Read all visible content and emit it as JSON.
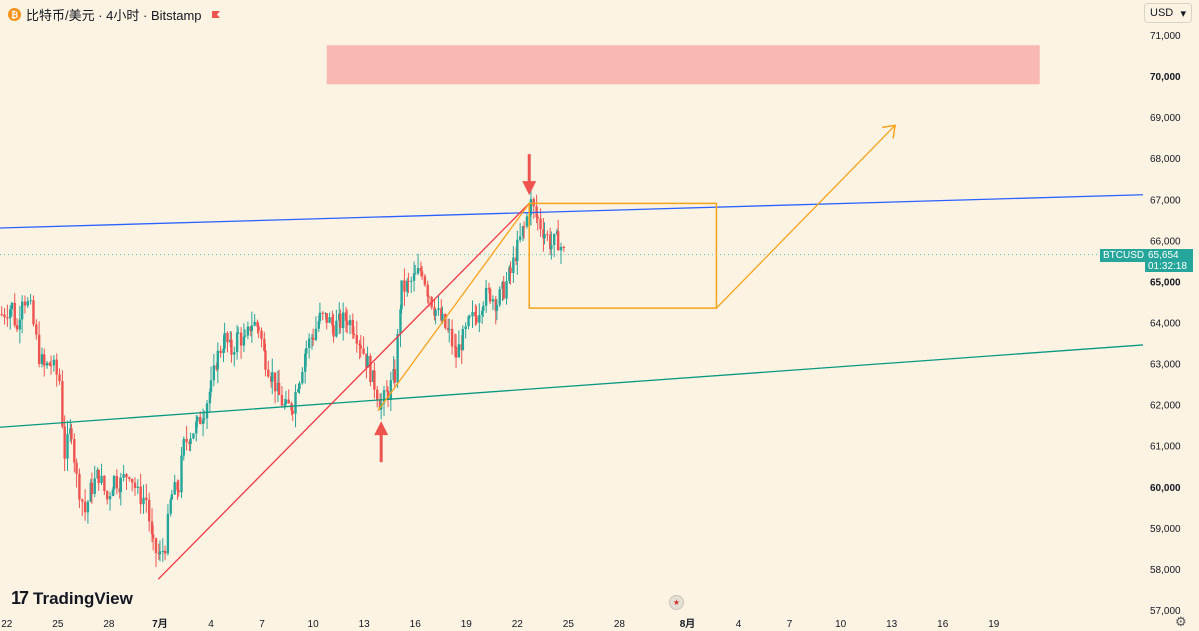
{
  "header": {
    "symbol_title": "比特币/美元 · 4小时 · Bitstamp",
    "coin_icon": "bitcoin-icon",
    "flag_icon": "red-flag-icon"
  },
  "currency_selector": {
    "label": "USD",
    "icon": "chevron-down-icon"
  },
  "price_tag": {
    "symbol": "BTCUSD",
    "price": "65,654",
    "countdown": "01:32:18"
  },
  "logo": {
    "text": "TradingView"
  },
  "colors": {
    "background": "#fcf3e3",
    "up": "#26a69a",
    "down": "#ef5350",
    "blue_line": "#2962ff",
    "green_line": "#089981",
    "red_line": "#f23645",
    "orange": "#f7a21b",
    "zone": "#f9b9b2"
  },
  "chart_data": {
    "type": "candlestick",
    "symbol": "BTCUSD",
    "timeframe": "4h",
    "exchange": "Bitstamp",
    "ylim": [
      57000,
      71500
    ],
    "y_ticks": [
      "71,000",
      "70,000",
      "69,000",
      "68,000",
      "67,000",
      "66,000",
      "65,000",
      "64,000",
      "63,000",
      "62,000",
      "61,000",
      "60,000",
      "59,000",
      "58,000",
      "57,000"
    ],
    "bold_ticks": [
      "70,000",
      "65,000",
      "60,000"
    ],
    "x_ticks": [
      "22",
      "25",
      "28",
      "7月",
      "4",
      "7",
      "10",
      "13",
      "16",
      "19",
      "22",
      "25",
      "28",
      "8月",
      "4",
      "7",
      "10",
      "13",
      "16",
      "19"
    ],
    "x_tick_dates": [
      -9,
      -6,
      -3,
      0,
      3,
      6,
      9,
      12,
      15,
      18,
      21,
      24,
      27,
      31,
      34,
      37,
      40,
      43,
      46,
      49
    ],
    "x_domain": [
      -9.4,
      61
    ],
    "bars_per_day": 6,
    "current_price": 65654,
    "anchors": [
      [
        -9.3,
        64200
      ],
      [
        -8.7,
        64400
      ],
      [
        -8.4,
        63800
      ],
      [
        -8.1,
        64700
      ],
      [
        -7.6,
        64300
      ],
      [
        -7.1,
        63200
      ],
      [
        -6.8,
        62900
      ],
      [
        -6.4,
        63000
      ],
      [
        -5.9,
        62600
      ],
      [
        -5.6,
        60800
      ],
      [
        -5.2,
        61400
      ],
      [
        -4.9,
        60200
      ],
      [
        -4.4,
        59400
      ],
      [
        -4.0,
        60000
      ],
      [
        -3.6,
        60300
      ],
      [
        -3.1,
        59700
      ],
      [
        -2.7,
        60200
      ],
      [
        -2.3,
        60100
      ],
      [
        -1.8,
        60400
      ],
      [
        -1.3,
        59800
      ],
      [
        -0.8,
        59700
      ],
      [
        -0.4,
        58500
      ],
      [
        0,
        58300
      ],
      [
        0.3,
        58600
      ],
      [
        0.7,
        59800
      ],
      [
        1.1,
        60000
      ],
      [
        1.4,
        61000
      ],
      [
        1.8,
        61300
      ],
      [
        2.2,
        61500
      ],
      [
        2.6,
        61900
      ],
      [
        3.0,
        62400
      ],
      [
        3.4,
        63200
      ],
      [
        3.8,
        63600
      ],
      [
        4.2,
        63300
      ],
      [
        4.6,
        63700
      ],
      [
        5.0,
        63500
      ],
      [
        5.4,
        64000
      ],
      [
        5.8,
        63900
      ],
      [
        6.2,
        63100
      ],
      [
        6.6,
        62700
      ],
      [
        7.0,
        62200
      ],
      [
        7.4,
        61900
      ],
      [
        7.8,
        62000
      ],
      [
        8.2,
        62700
      ],
      [
        8.6,
        63400
      ],
      [
        9.0,
        63700
      ],
      [
        9.4,
        64100
      ],
      [
        9.8,
        64100
      ],
      [
        10.2,
        63900
      ],
      [
        10.6,
        64000
      ],
      [
        11.0,
        64100
      ],
      [
        11.4,
        63900
      ],
      [
        11.8,
        63500
      ],
      [
        12.2,
        63000
      ],
      [
        12.6,
        62500
      ],
      [
        13.0,
        62000
      ],
      [
        13.4,
        62300
      ],
      [
        13.8,
        62700
      ],
      [
        14.2,
        64800
      ],
      [
        14.6,
        64900
      ],
      [
        15.0,
        65100
      ],
      [
        15.4,
        65300
      ],
      [
        15.8,
        64700
      ],
      [
        16.2,
        64300
      ],
      [
        16.6,
        64000
      ],
      [
        17.0,
        63700
      ],
      [
        17.4,
        63200
      ],
      [
        17.8,
        63600
      ],
      [
        18.2,
        64000
      ],
      [
        18.6,
        64200
      ],
      [
        19.0,
        64600
      ],
      [
        19.4,
        64700
      ],
      [
        19.8,
        64500
      ],
      [
        20.2,
        64800
      ],
      [
        20.6,
        65200
      ],
      [
        21.0,
        65800
      ],
      [
        21.4,
        66300
      ],
      [
        21.8,
        66900
      ],
      [
        22.2,
        66500
      ],
      [
        22.6,
        66200
      ],
      [
        23.0,
        65900
      ],
      [
        23.4,
        66000
      ],
      [
        23.8,
        65650
      ]
    ],
    "lines": [
      {
        "name": "blue",
        "points": [
          [
            -9.4,
            66300
          ],
          [
            61,
            67150
          ]
        ]
      },
      {
        "name": "green",
        "points": [
          [
            -9.4,
            61450
          ],
          [
            61,
            63550
          ]
        ]
      },
      {
        "name": "red",
        "points": [
          [
            -0.1,
            57750
          ],
          [
            21.7,
            66900
          ]
        ]
      },
      {
        "name": "orange-a",
        "points": [
          [
            12.8,
            61850
          ],
          [
            21.7,
            66900
          ]
        ]
      },
      {
        "name": "orange-b",
        "points": [
          [
            32.7,
            64350
          ],
          [
            43.2,
            68800
          ]
        ]
      }
    ],
    "orange_rect": {
      "x": [
        21.7,
        32.7
      ],
      "y": [
        64350,
        66900
      ]
    },
    "resistance_zone": {
      "x": [
        9.8,
        51.7
      ],
      "y": [
        69800,
        70750
      ]
    },
    "arrows": [
      {
        "direction": "down",
        "x": 21.7,
        "y_from": 68100,
        "y_to": 67100
      },
      {
        "direction": "up",
        "x": 13.0,
        "y_from": 60600,
        "y_to": 61600
      }
    ]
  }
}
